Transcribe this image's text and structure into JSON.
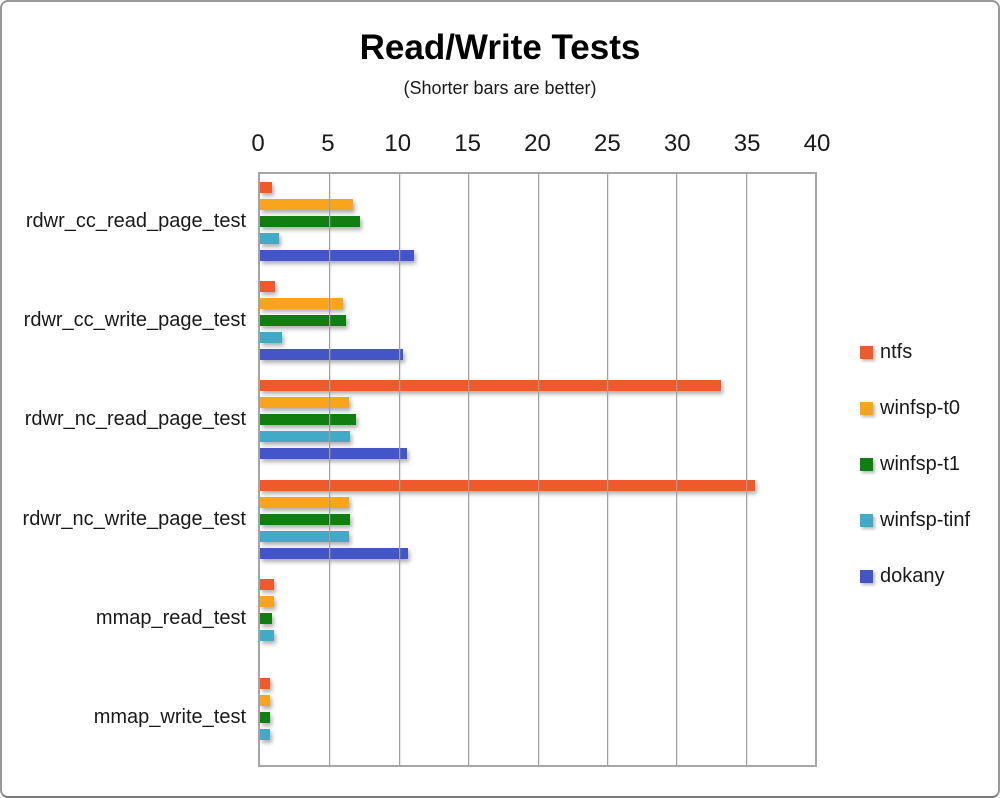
{
  "chart_data": {
    "type": "bar",
    "orientation": "horizontal",
    "title": "Read/Write Tests",
    "subtitle": "(Shorter bars are better)",
    "categories": [
      "rdwr_cc_read_page_test",
      "rdwr_cc_write_page_test",
      "rdwr_nc_read_page_test",
      "rdwr_nc_write_page_test",
      "mmap_read_test",
      "mmap_write_test"
    ],
    "series": [
      {
        "name": "ntfs",
        "color": "#F0592B",
        "values": [
          0.9,
          1.1,
          33.2,
          35.7,
          1.0,
          0.7
        ]
      },
      {
        "name": "winfsp-t0",
        "color": "#FAA41E",
        "values": [
          6.7,
          6.0,
          6.4,
          6.4,
          1.0,
          0.7
        ]
      },
      {
        "name": "winfsp-t1",
        "color": "#117E11",
        "values": [
          7.2,
          6.2,
          6.9,
          6.5,
          0.9,
          0.75
        ]
      },
      {
        "name": "winfsp-tinf",
        "color": "#42A9C7",
        "values": [
          1.4,
          1.6,
          6.5,
          6.4,
          1.0,
          0.75
        ]
      },
      {
        "name": "dokany",
        "color": "#4355C7",
        "values": [
          11.1,
          10.3,
          10.6,
          10.7,
          0,
          0
        ]
      }
    ],
    "xlabel": "",
    "ylabel": "",
    "xlim": [
      0,
      40
    ],
    "xticks": [
      0,
      5,
      10,
      15,
      20,
      25,
      30,
      35,
      40
    ],
    "grid": "vertical",
    "legend_position": "right",
    "colors": {
      "axis": "#A6A6A6",
      "gridline": "#A0A0A0",
      "text": "#1A1A1A",
      "background": "#FFFFFF",
      "frame_border": "#999999"
    }
  }
}
